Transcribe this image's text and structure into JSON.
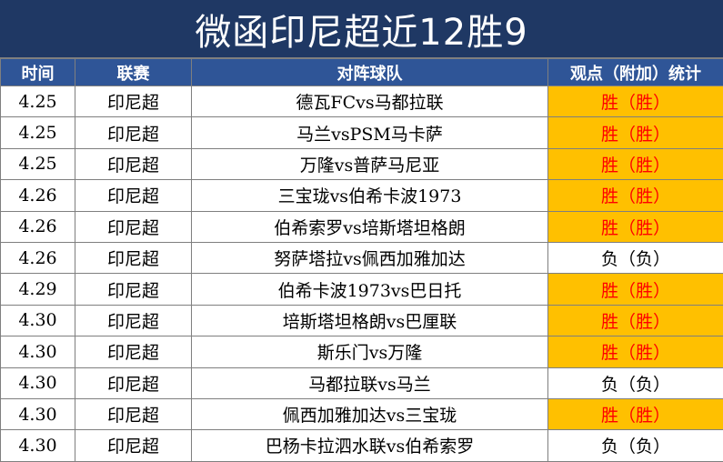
{
  "title": "微函印尼超近12胜9",
  "headers": {
    "time": "时间",
    "league": "联赛",
    "match": "对阵球队",
    "opinion": "观点（附加）统计"
  },
  "colors": {
    "title_bg": "#1f3864",
    "header_bg": "#2f5597",
    "win_bg": "#ffc000",
    "win_text": "#ff0000"
  },
  "rows": [
    {
      "date": "4.25",
      "league": "印尼超",
      "match": "德瓦FCvs马都拉联",
      "result": "胜（胜）",
      "status": "win"
    },
    {
      "date": "4.25",
      "league": "印尼超",
      "match": "马兰vsPSM马卡萨",
      "result": "胜（胜）",
      "status": "win"
    },
    {
      "date": "4.25",
      "league": "印尼超",
      "match": "万隆vs普萨马尼亚",
      "result": "胜（胜）",
      "status": "win"
    },
    {
      "date": "4.26",
      "league": "印尼超",
      "match": "三宝珑vs伯希卡波1973",
      "result": "胜（胜）",
      "status": "win"
    },
    {
      "date": "4.26",
      "league": "印尼超",
      "match": "伯希索罗vs培斯塔坦格朗",
      "result": "胜（胜）",
      "status": "win"
    },
    {
      "date": "4.26",
      "league": "印尼超",
      "match": "努萨塔拉vs佩西加雅加达",
      "result": "负（负）",
      "status": "lose"
    },
    {
      "date": "4.29",
      "league": "印尼超",
      "match": "伯希卡波1973vs巴日托",
      "result": "胜（胜）",
      "status": "win"
    },
    {
      "date": "4.30",
      "league": "印尼超",
      "match": "培斯塔坦格朗vs巴厘联",
      "result": "胜（胜）",
      "status": "win"
    },
    {
      "date": "4.30",
      "league": "印尼超",
      "match": "斯乐门vs万隆",
      "result": "胜（胜）",
      "status": "win"
    },
    {
      "date": "4.30",
      "league": "印尼超",
      "match": "马都拉联vs马兰",
      "result": "负（负）",
      "status": "lose"
    },
    {
      "date": "4.30",
      "league": "印尼超",
      "match": "佩西加雅加达vs三宝珑",
      "result": "胜（胜）",
      "status": "win"
    },
    {
      "date": "4.30",
      "league": "印尼超",
      "match": "巴杨卡拉泗水联vs伯希索罗",
      "result": "负（负）",
      "status": "lose"
    }
  ]
}
